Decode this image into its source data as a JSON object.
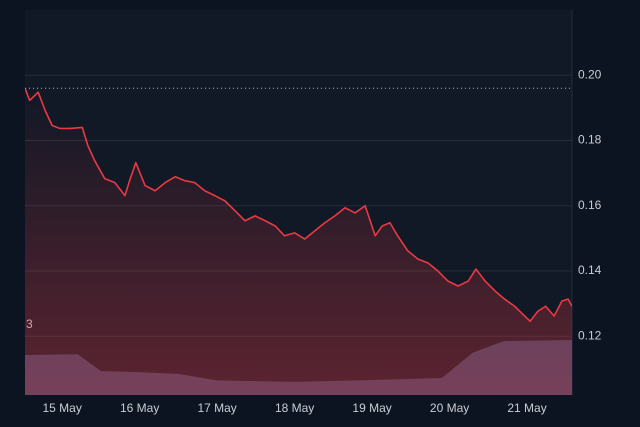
{
  "chart_data": {
    "type": "line",
    "annotation": "3",
    "x": [
      -0.48,
      -0.42,
      -0.31,
      -0.22,
      -0.13,
      -0.03,
      0.1,
      0.26,
      0.33,
      0.42,
      0.55,
      0.68,
      0.81,
      0.87,
      0.95,
      1.07,
      1.2,
      1.33,
      1.46,
      1.58,
      1.71,
      1.84,
      1.97,
      2.1,
      2.23,
      2.36,
      2.49,
      2.62,
      2.75,
      2.87,
      3.0,
      3.13,
      3.26,
      3.39,
      3.52,
      3.65,
      3.78,
      3.91,
      4.04,
      4.13,
      4.23,
      4.33,
      4.46,
      4.59,
      4.72,
      4.85,
      4.98,
      5.11,
      5.24,
      5.34,
      5.46,
      5.59,
      5.71,
      5.84,
      5.93,
      6.04,
      6.14,
      6.24,
      6.35,
      6.45,
      6.53,
      6.58
    ],
    "series": [
      {
        "color": "#ea3943",
        "values": [
          0.196,
          0.1923,
          0.1948,
          0.1892,
          0.1846,
          0.1837,
          0.1837,
          0.184,
          0.1785,
          0.1738,
          0.1683,
          0.1671,
          0.1631,
          0.1677,
          0.1732,
          0.1662,
          0.1646,
          0.1671,
          0.1689,
          0.1677,
          0.1671,
          0.1646,
          0.1631,
          0.1615,
          0.1585,
          0.1554,
          0.1569,
          0.1554,
          0.1538,
          0.1508,
          0.1517,
          0.1498,
          0.1523,
          0.1548,
          0.1569,
          0.1594,
          0.1578,
          0.16,
          0.1508,
          0.1538,
          0.1548,
          0.1508,
          0.1462,
          0.1437,
          0.1425,
          0.14,
          0.1369,
          0.1354,
          0.1369,
          0.1406,
          0.1369,
          0.1338,
          0.1314,
          0.1292,
          0.1271,
          0.1246,
          0.1277,
          0.1292,
          0.1262,
          0.1308,
          0.1314,
          0.1292
        ]
      },
      {
        "color": "#3a4466",
        "axis": "y2",
        "x": [
          -0.48,
          0.2,
          0.5,
          0.9,
          1.5,
          2.0,
          3.0,
          4.0,
          4.9,
          5.3,
          5.7,
          6.58
        ],
        "values": [
          10.4,
          10.6,
          6.2,
          6.0,
          5.5,
          3.8,
          3.4,
          3.9,
          4.4,
          11,
          14,
          14.3
        ]
      }
    ],
    "baseline": 0.196,
    "xlim": [
      -0.48,
      6.58
    ],
    "xticks": [
      {
        "value": 0,
        "label": "15 May"
      },
      {
        "value": 1,
        "label": "16 May"
      },
      {
        "value": 2,
        "label": "17 May"
      },
      {
        "value": 3,
        "label": "18 May"
      },
      {
        "value": 4,
        "label": "19 May"
      },
      {
        "value": 5,
        "label": "20 May"
      },
      {
        "value": 6,
        "label": "21 May"
      }
    ],
    "ylim": [
      0.102,
      0.22
    ],
    "yticks": [
      {
        "value": 0.12,
        "label": "0.12"
      },
      {
        "value": 0.14,
        "label": "0.14"
      },
      {
        "value": 0.16,
        "label": "0.16"
      },
      {
        "value": 0.18,
        "label": "0.18"
      },
      {
        "value": 0.2,
        "label": "0.20"
      }
    ],
    "y2lim": [
      0,
      100
    ],
    "grid": true
  }
}
